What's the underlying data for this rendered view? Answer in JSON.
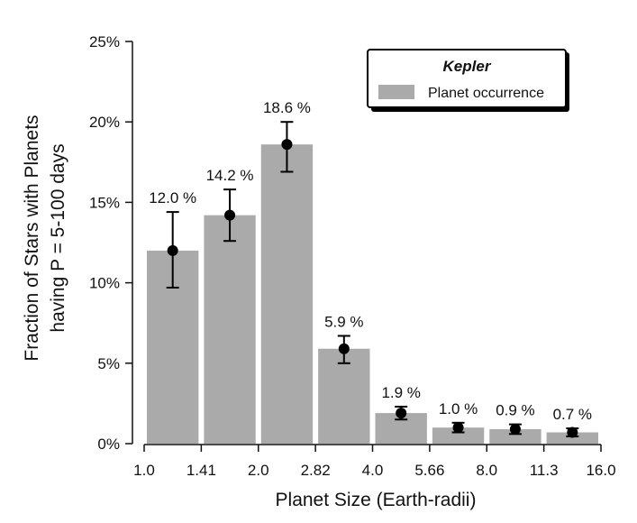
{
  "chart_data": {
    "type": "bar",
    "xlabel": "Planet Size (Earth-radii)",
    "ylabel_lines": [
      "Fraction of Stars with Planets",
      "having P = 5-100 days"
    ],
    "x_tick_labels": [
      "1.0",
      "1.41",
      "2.0",
      "2.82",
      "4.0",
      "5.66",
      "8.0",
      "11.3",
      "16.0"
    ],
    "y_tick_labels": [
      "0%",
      "5%",
      "10%",
      "15%",
      "20%",
      "25%"
    ],
    "ylim": [
      0,
      25
    ],
    "grid": false,
    "legend": {
      "title": "Kepler",
      "entries": [
        "Planet occurrence"
      ],
      "position": "top-right"
    },
    "series": [
      {
        "name": "Planet occurrence",
        "bars": [
          {
            "bin": [
              "1.0",
              "1.41"
            ],
            "value": 12.0,
            "error": [
              9.7,
              14.4
            ],
            "label": "12.0 %"
          },
          {
            "bin": [
              "1.41",
              "2.0"
            ],
            "value": 14.2,
            "error": [
              12.6,
              15.8
            ],
            "label": "14.2 %"
          },
          {
            "bin": [
              "2.0",
              "2.82"
            ],
            "value": 18.6,
            "error": [
              16.9,
              20.0
            ],
            "label": "18.6 %"
          },
          {
            "bin": [
              "2.82",
              "4.0"
            ],
            "value": 5.9,
            "error": [
              5.0,
              6.7
            ],
            "label": "5.9 %"
          },
          {
            "bin": [
              "4.0",
              "5.66"
            ],
            "value": 1.9,
            "error": [
              1.5,
              2.3
            ],
            "label": "1.9 %"
          },
          {
            "bin": [
              "5.66",
              "8.0"
            ],
            "value": 1.0,
            "error": [
              0.7,
              1.3
            ],
            "label": "1.0 %"
          },
          {
            "bin": [
              "8.0",
              "11.3"
            ],
            "value": 0.9,
            "error": [
              0.6,
              1.2
            ],
            "label": "0.9 %"
          },
          {
            "bin": [
              "11.3",
              "16.0"
            ],
            "value": 0.7,
            "error": [
              0.45,
              0.95
            ],
            "label": "0.7 %"
          }
        ]
      }
    ],
    "colors": {
      "bar": "#aaaaaa",
      "axis": "#111111",
      "point": "#000000"
    }
  }
}
